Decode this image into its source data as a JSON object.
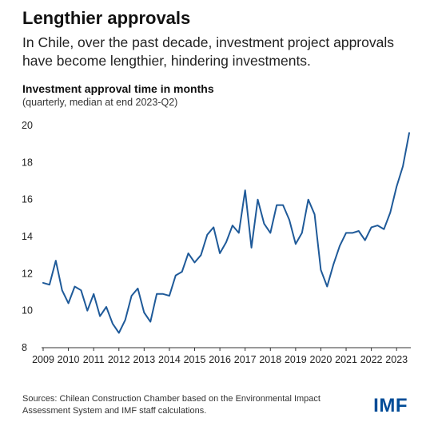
{
  "header": {
    "title": "Lengthier approvals",
    "subtitle": "In Chile, over the past decade, investment project approvals have become lengthier, hindering investments."
  },
  "chart_data": {
    "type": "line",
    "title": "Investment approval time in months",
    "subtitle": "(quarterly, median at end 2023-Q2)",
    "xlabel": "",
    "ylabel": "",
    "x_start": "2009",
    "frequency": "quarterly",
    "x_tick_labels": [
      "2009",
      "2010",
      "2011",
      "2012",
      "2013",
      "2014",
      "2015",
      "2016",
      "2017",
      "2018",
      "2019",
      "2020",
      "2021",
      "2022",
      "2023"
    ],
    "y_ticks": [
      8,
      10,
      12,
      14,
      16,
      18,
      20
    ],
    "ylim": [
      8,
      20
    ],
    "grid": false,
    "legend": "none",
    "series": [
      {
        "values": [
          11.5,
          11.4,
          12.7,
          11.1,
          10.4,
          11.3,
          11.1,
          10.0,
          10.9,
          9.7,
          10.2,
          9.3,
          8.8,
          9.5,
          10.8,
          11.2,
          9.9,
          9.4,
          10.9,
          10.9,
          10.8,
          11.9,
          12.1,
          13.1,
          12.6,
          13.0,
          14.1,
          14.5,
          13.1,
          13.7,
          14.6,
          14.2,
          16.5,
          13.4,
          16.0,
          14.7,
          14.2,
          15.7,
          15.7,
          14.9,
          13.6,
          14.2,
          16.0,
          15.2,
          12.2,
          11.3,
          12.5,
          13.5,
          14.2,
          14.2,
          14.3,
          13.8,
          14.5,
          14.6,
          14.4,
          15.3,
          16.7,
          17.8,
          19.6
        ]
      }
    ],
    "line_color": "#1f5a99"
  },
  "footer": {
    "source": "Sources: Chilean Construction Chamber based on the Environmental Impact Assessment System and IMF staff calculations.",
    "logo": "IMF"
  }
}
